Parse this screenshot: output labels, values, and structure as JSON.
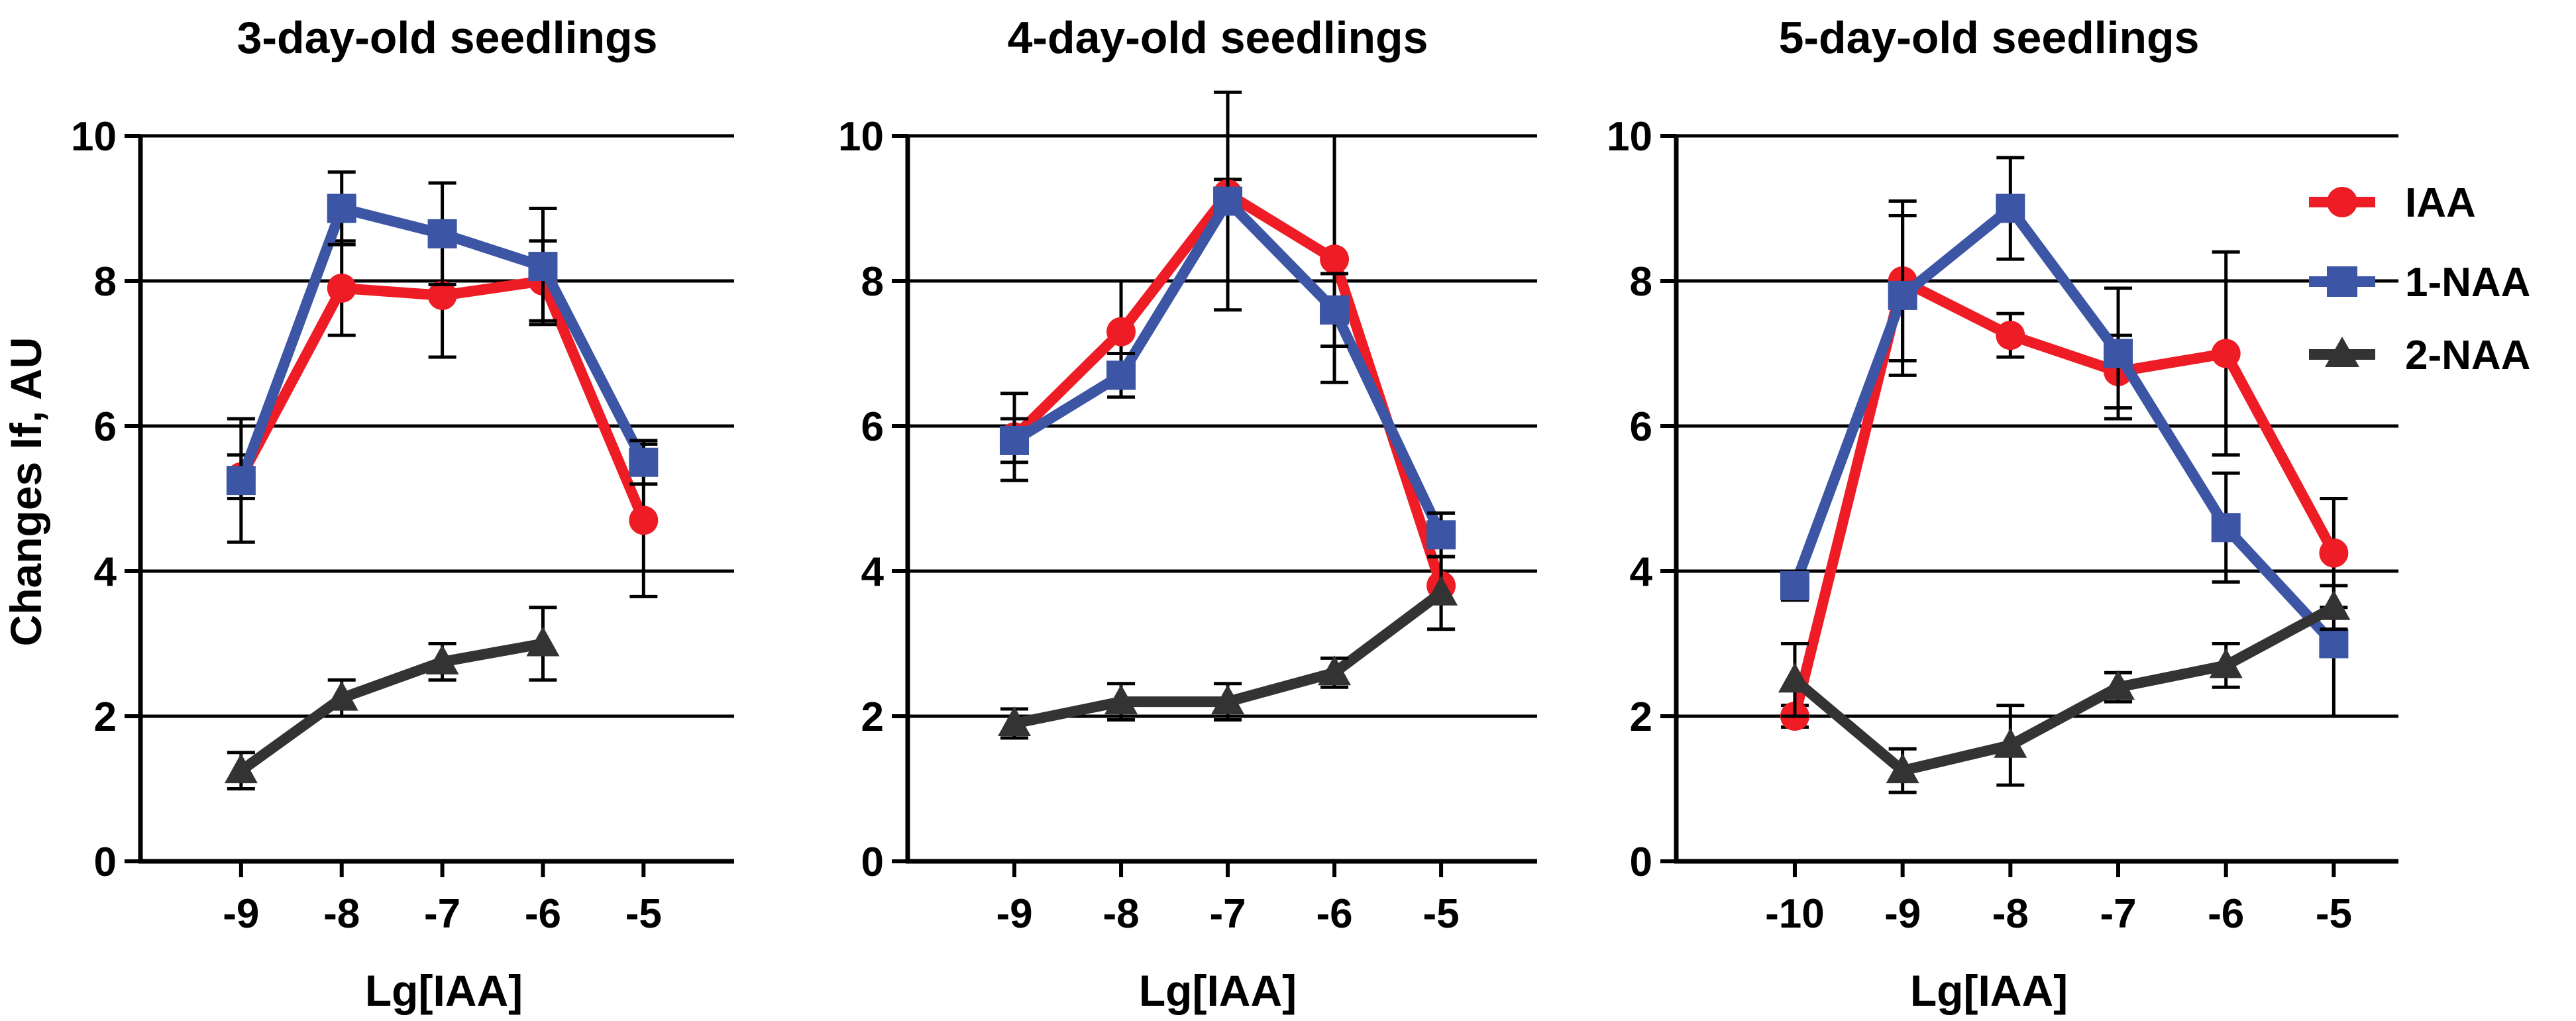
{
  "y_axis_label": "Changes If, AU",
  "colors": {
    "IAA": "#ee1c25",
    "1-NAA": "#3c55a5",
    "2-NAA": "#333333",
    "axis": "#000000"
  },
  "legend": [
    {
      "name": "IAA",
      "marker": "circle"
    },
    {
      "name": "1-NAA",
      "marker": "square"
    },
    {
      "name": "2-NAA",
      "marker": "triangle"
    }
  ],
  "chart_data": [
    {
      "type": "line",
      "title": "3-day-old seedlings",
      "xlabel": "Lg[IAA]",
      "ylabel": "Changes If, AU",
      "xlim": [
        -10,
        -4.1
      ],
      "ylim": [
        0,
        10
      ],
      "x_ticks": [
        -9,
        -8,
        -7,
        -6,
        -5
      ],
      "x_tick_labels": [
        "-9",
        "-8",
        "-7",
        "-6",
        "-5"
      ],
      "y_ticks": [
        0,
        2,
        4,
        6,
        8,
        10
      ],
      "y_tick_labels": [
        "0",
        "2",
        "4",
        "6",
        "8",
        "10"
      ],
      "gridlines": [
        2,
        4,
        6,
        8,
        10
      ],
      "series": [
        {
          "name": "IAA",
          "x": [
            -9,
            -8,
            -7,
            -6,
            -5
          ],
          "y": [
            5.3,
            7.9,
            7.8,
            8.0,
            4.7
          ],
          "err": [
            0.3,
            0.65,
            0.85,
            0.55,
            1.05
          ]
        },
        {
          "name": "1-NAA",
          "x": [
            -9,
            -8,
            -7,
            -6,
            -5
          ],
          "y": [
            5.25,
            9.0,
            8.65,
            8.2,
            5.5
          ],
          "err": [
            0.85,
            0.5,
            0.7,
            0.8,
            0.3
          ]
        },
        {
          "name": "2-NAA",
          "x": [
            -9,
            -8,
            -7,
            -6
          ],
          "y": [
            1.25,
            2.25,
            2.75,
            3.0
          ],
          "err": [
            0.25,
            0.25,
            0.25,
            0.5
          ]
        }
      ]
    },
    {
      "type": "line",
      "title": "4-day-old seedlings",
      "xlabel": "Lg[IAA]",
      "ylabel": "",
      "xlim": [
        -10,
        -4.1
      ],
      "ylim": [
        0,
        10
      ],
      "x_ticks": [
        -9,
        -8,
        -7,
        -6,
        -5
      ],
      "x_tick_labels": [
        "-9",
        "-8",
        "-7",
        "-6",
        "-5"
      ],
      "y_ticks": [
        0,
        2,
        4,
        6,
        8,
        10
      ],
      "y_tick_labels": [
        "0",
        "2",
        "4",
        "6",
        "8",
        "10"
      ],
      "gridlines": [
        2,
        4,
        6,
        8,
        10
      ],
      "series": [
        {
          "name": "IAA",
          "x": [
            -9,
            -8,
            -7,
            -6,
            -5
          ],
          "y": [
            5.85,
            7.3,
            9.2,
            8.3,
            3.8
          ],
          "err": [
            0.6,
            0.7,
            0.2,
            1.7,
            0.6
          ]
        },
        {
          "name": "1-NAA",
          "x": [
            -9,
            -8,
            -7,
            -6,
            -5
          ],
          "y": [
            5.8,
            6.7,
            9.1,
            7.6,
            4.5
          ],
          "err": [
            0.3,
            0.3,
            1.5,
            0.5,
            0.3
          ]
        },
        {
          "name": "2-NAA",
          "x": [
            -9,
            -8,
            -7,
            -6,
            -5
          ],
          "y": [
            1.9,
            2.2,
            2.2,
            2.6,
            3.7
          ],
          "err": [
            0.2,
            0.25,
            0.25,
            0.2,
            0.5
          ]
        }
      ]
    },
    {
      "type": "line",
      "title": "5-day-old seedlings",
      "xlabel": "Lg[IAA]",
      "ylabel": "",
      "xlim": [
        -11.1,
        -4.4
      ],
      "ylim": [
        0,
        10
      ],
      "x_ticks": [
        -10,
        -9,
        -8,
        -7,
        -6,
        -5
      ],
      "x_tick_labels": [
        "-10",
        "-9",
        "-8",
        "-7",
        "-6",
        "-5"
      ],
      "y_ticks": [
        0,
        2,
        4,
        6,
        8,
        10
      ],
      "y_tick_labels": [
        "0",
        "2",
        "4",
        "6",
        "8",
        "10"
      ],
      "gridlines": [
        2,
        4,
        6,
        8,
        10
      ],
      "series": [
        {
          "name": "IAA",
          "x": [
            -10,
            -9,
            -8,
            -7,
            -6,
            -5
          ],
          "y": [
            2.0,
            8.0,
            7.25,
            6.75,
            7.0,
            4.25
          ],
          "err": [
            0.15,
            1.1,
            0.3,
            0.5,
            1.4,
            0.75
          ]
        },
        {
          "name": "1-NAA",
          "x": [
            -10,
            -9,
            -8,
            -7,
            -6,
            -5
          ],
          "y": [
            3.8,
            7.8,
            9.0,
            7.0,
            4.6,
            3.0
          ],
          "err": [
            0.2,
            1.1,
            0.7,
            0.9,
            0.75,
            1.0
          ]
        },
        {
          "name": "2-NAA",
          "x": [
            -10,
            -9,
            -8,
            -7,
            -6,
            -5
          ],
          "y": [
            2.5,
            1.25,
            1.6,
            2.4,
            2.7,
            3.5
          ],
          "err": [
            0.5,
            0.3,
            0.55,
            0.2,
            0.3,
            0.3
          ]
        }
      ]
    }
  ]
}
